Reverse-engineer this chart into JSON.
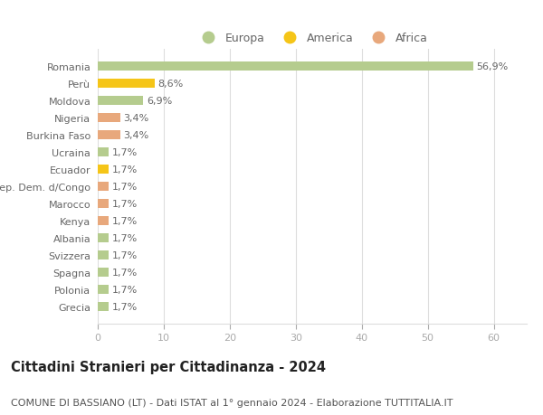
{
  "categories": [
    "Grecia",
    "Polonia",
    "Spagna",
    "Svizzera",
    "Albania",
    "Kenya",
    "Marocco",
    "Rep. Dem. d/Congo",
    "Ecuador",
    "Ucraina",
    "Burkina Faso",
    "Nigeria",
    "Moldova",
    "Perù",
    "Romania"
  ],
  "values": [
    1.7,
    1.7,
    1.7,
    1.7,
    1.7,
    1.7,
    1.7,
    1.7,
    1.7,
    1.7,
    3.4,
    3.4,
    6.9,
    8.6,
    56.9
  ],
  "labels": [
    "1,7%",
    "1,7%",
    "1,7%",
    "1,7%",
    "1,7%",
    "1,7%",
    "1,7%",
    "1,7%",
    "1,7%",
    "1,7%",
    "3,4%",
    "3,4%",
    "6,9%",
    "8,6%",
    "56,9%"
  ],
  "colors": [
    "#b5cc8e",
    "#b5cc8e",
    "#b5cc8e",
    "#b5cc8e",
    "#b5cc8e",
    "#e8a87c",
    "#e8a87c",
    "#e8a87c",
    "#f5c518",
    "#b5cc8e",
    "#e8a87c",
    "#e8a87c",
    "#b5cc8e",
    "#f5c518",
    "#b5cc8e"
  ],
  "legend": [
    {
      "label": "Europa",
      "color": "#b5cc8e"
    },
    {
      "label": "America",
      "color": "#f5c518"
    },
    {
      "label": "Africa",
      "color": "#e8a87c"
    }
  ],
  "title": "Cittadini Stranieri per Cittadinanza - 2024",
  "subtitle": "COMUNE DI BASSIANO (LT) - Dati ISTAT al 1° gennaio 2024 - Elaborazione TUTTITALIA.IT",
  "xlim": [
    0,
    65
  ],
  "xticks": [
    0,
    10,
    20,
    30,
    40,
    50,
    60
  ],
  "background_color": "#ffffff",
  "grid_color": "#dddddd",
  "bar_height": 0.55,
  "title_fontsize": 10.5,
  "subtitle_fontsize": 8,
  "label_fontsize": 8,
  "tick_fontsize": 8,
  "legend_fontsize": 9
}
